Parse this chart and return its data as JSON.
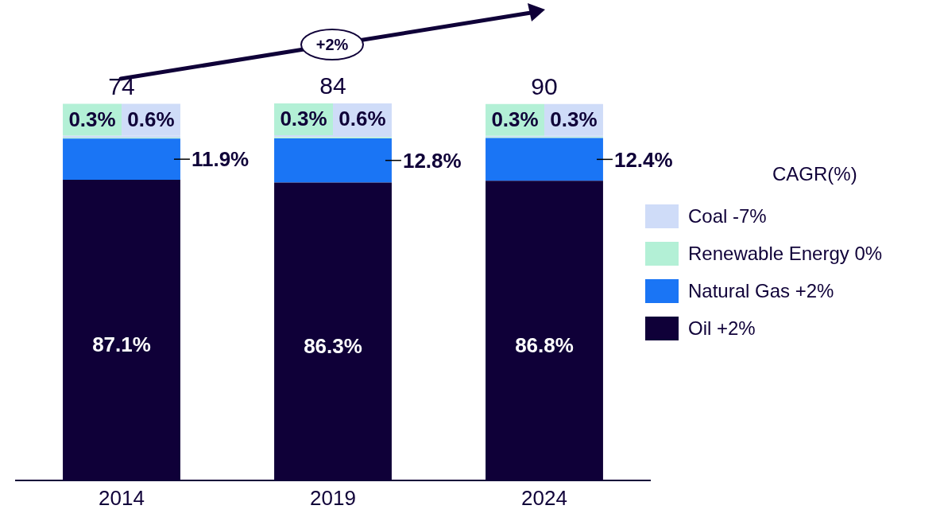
{
  "chart_data": {
    "type": "bar",
    "stacked": true,
    "categories": [
      "2014",
      "2019",
      "2024"
    ],
    "series": [
      {
        "name": "Oil +2%",
        "color": "#0f0038",
        "values": [
          87.1,
          86.3,
          86.8
        ],
        "value_labels": [
          "87.1%",
          "86.3%",
          "86.8%"
        ]
      },
      {
        "name": "Natural Gas +2%",
        "color": "#1a75f5",
        "values": [
          11.9,
          12.8,
          12.4
        ],
        "value_labels": [
          "11.9%",
          "12.8%",
          "12.4%"
        ]
      },
      {
        "name": "Renewable Energy 0%",
        "color": "#b3f0d6",
        "values": [
          0.3,
          0.3,
          0.3
        ],
        "value_labels": [
          "0.3%",
          "0.3%",
          "0.3%"
        ]
      },
      {
        "name": "Coal -7%",
        "color": "#cfdcf8",
        "values": [
          0.6,
          0.6,
          0.3
        ],
        "value_labels": [
          "0.6%",
          "0.6%",
          "0.3%"
        ]
      }
    ],
    "tick_labels": "x",
    "grid": false,
    "legend": "right",
    "legend_title": "CAGR(%)",
    "annotations": [
      "+2%",
      "74",
      "84",
      "90"
    ]
  }
}
